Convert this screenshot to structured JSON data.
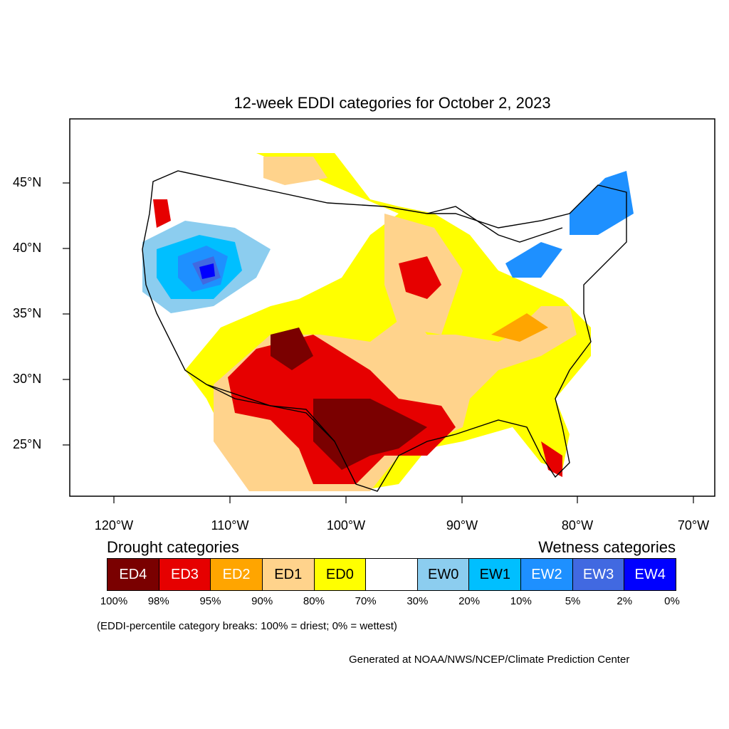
{
  "title": "12-week EDDI categories for October 2, 2023",
  "lat_labels": [
    "45°N",
    "40°N",
    "35°N",
    "30°N",
    "25°N"
  ],
  "lon_labels": [
    "120°W",
    "110°W",
    "100°W",
    "90°W",
    "80°W",
    "70°W"
  ],
  "legend": {
    "drought_heading": "Drought categories",
    "wetness_heading": "Wetness categories",
    "categories": [
      {
        "label": "ED4",
        "color": "#7a0000",
        "text_color": "#ffffff"
      },
      {
        "label": "ED3",
        "color": "#e60000",
        "text_color": "#ffffff"
      },
      {
        "label": "ED2",
        "color": "#ffa500",
        "text_color": "#ffffff"
      },
      {
        "label": "ED1",
        "color": "#ffd38c",
        "text_color": "#000000"
      },
      {
        "label": "ED0",
        "color": "#ffff00",
        "text_color": "#000000"
      },
      {
        "label": "",
        "color": "#ffffff",
        "text_color": "#000000"
      },
      {
        "label": "EW0",
        "color": "#8ccdef",
        "text_color": "#000000"
      },
      {
        "label": "EW1",
        "color": "#00bfff",
        "text_color": "#000000"
      },
      {
        "label": "EW2",
        "color": "#1e90ff",
        "text_color": "#ffffff"
      },
      {
        "label": "EW3",
        "color": "#4169e1",
        "text_color": "#ffffff"
      },
      {
        "label": "EW4",
        "color": "#0000ff",
        "text_color": "#ffffff"
      }
    ],
    "breaks": [
      "100%",
      "98%",
      "95%",
      "90%",
      "80%",
      "70%",
      "30%",
      "20%",
      "10%",
      "5%",
      "2%",
      "0%"
    ]
  },
  "note": "(EDDI-percentile category breaks: 100% = driest; 0% = wettest)",
  "credit": "Generated at NOAA/NWS/NCEP/Climate Prediction Center"
}
